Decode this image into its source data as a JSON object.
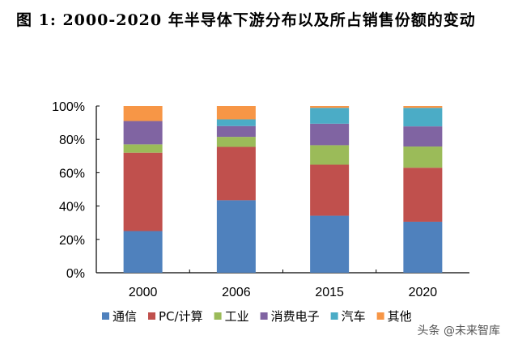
{
  "title": "图 1:   2000-2020 年半导体下游分布以及所占销售份额的变动",
  "watermark": "头条 @未来智库",
  "chart_data": {
    "type": "bar",
    "stacked": true,
    "categories": [
      "2000",
      "2006",
      "2015",
      "2020"
    ],
    "ylim": [
      0,
      100
    ],
    "yticks": [
      "0%",
      "20%",
      "40%",
      "60%",
      "80%",
      "100%"
    ],
    "grid": false,
    "legend": "bottom",
    "series": [
      {
        "name": "通信",
        "color": "#4F81BD",
        "values": [
          25,
          43.5,
          34.2,
          30.6
        ]
      },
      {
        "name": "PC/计算",
        "color": "#C0504D",
        "values": [
          47,
          32,
          30.6,
          32.4
        ]
      },
      {
        "name": "工业",
        "color": "#9BBB59",
        "values": [
          5,
          6,
          11.7,
          12.7
        ]
      },
      {
        "name": "消费电子",
        "color": "#8064A2",
        "values": [
          14,
          6.5,
          12.9,
          12.1
        ]
      },
      {
        "name": "汽车",
        "color": "#4BACC6",
        "values": [
          0,
          4,
          9.5,
          11.1
        ]
      },
      {
        "name": "其他",
        "color": "#F79646",
        "values": [
          9,
          8,
          1.1,
          1.1
        ]
      }
    ]
  }
}
